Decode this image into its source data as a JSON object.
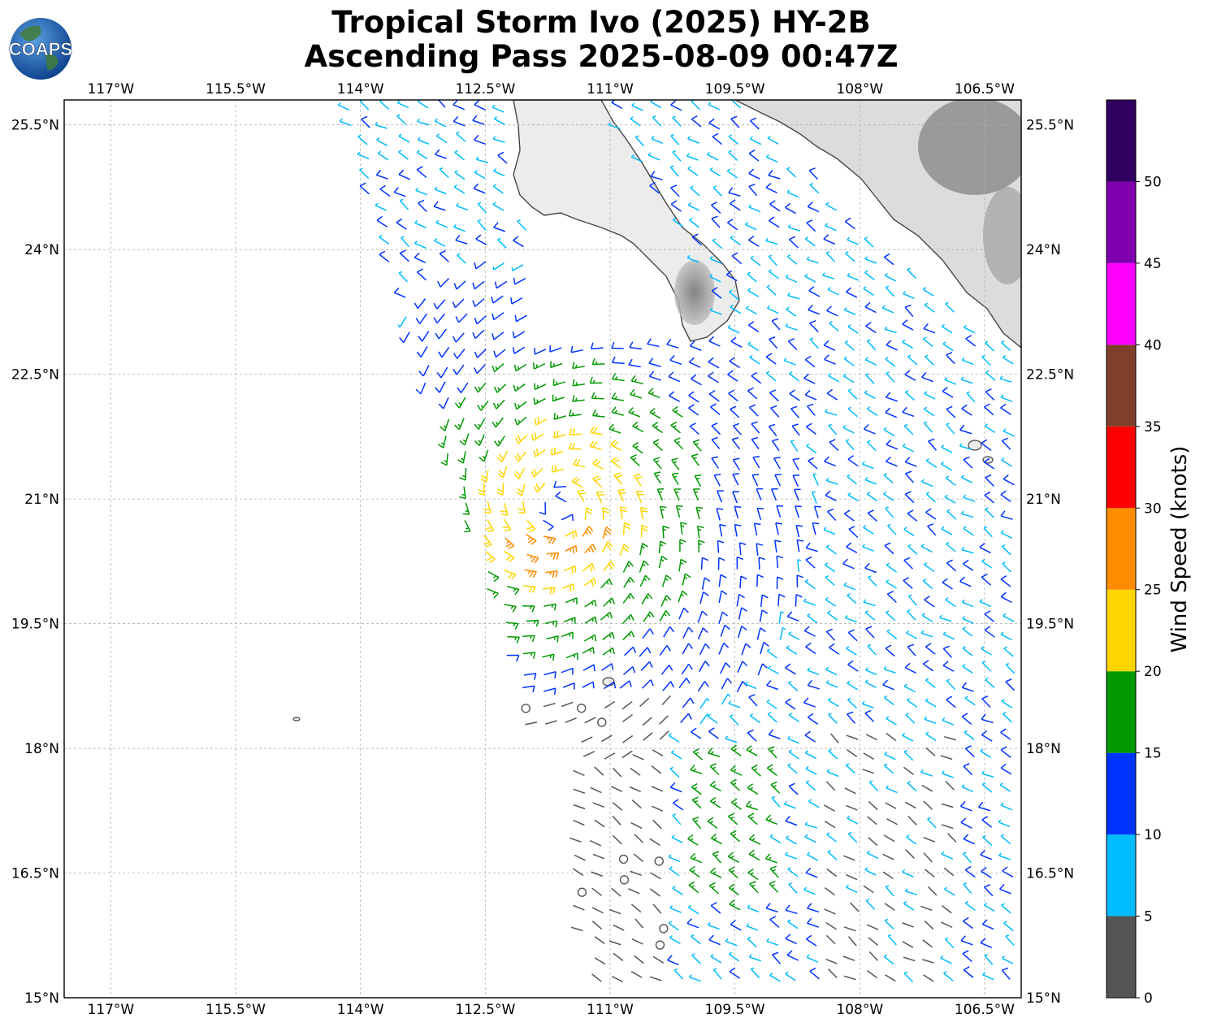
{
  "title": {
    "line1": "Tropical Storm Ivo (2025) HY-2B",
    "line2": "Ascending Pass 2025-08-09 00:47Z"
  },
  "logo": {
    "text": "COAPS",
    "icon": "globe-icon"
  },
  "map": {
    "lon_range": [
      -117.56,
      -106.06
    ],
    "lat_range": [
      15.0,
      25.8
    ],
    "lon_ticks": [
      {
        "value": -117.0,
        "label": "117°W"
      },
      {
        "value": -115.5,
        "label": "115.5°W"
      },
      {
        "value": -114.0,
        "label": "114°W"
      },
      {
        "value": -112.5,
        "label": "112.5°W"
      },
      {
        "value": -111.0,
        "label": "111°W"
      },
      {
        "value": -109.5,
        "label": "109.5°W"
      },
      {
        "value": -108.0,
        "label": "108°W"
      },
      {
        "value": -106.5,
        "label": "106.5°W"
      }
    ],
    "lat_ticks": [
      {
        "value": 25.5,
        "label": "25.5°N"
      },
      {
        "value": 24.0,
        "label": "24°N"
      },
      {
        "value": 22.5,
        "label": "22.5°N"
      },
      {
        "value": 21.0,
        "label": "21°N"
      },
      {
        "value": 19.5,
        "label": "19.5°N"
      },
      {
        "value": 18.0,
        "label": "18°N"
      },
      {
        "value": 16.5,
        "label": "16.5°N"
      },
      {
        "value": 15.0,
        "label": "15°N"
      }
    ],
    "gridlines": true,
    "storm_center": {
      "lon": -111.6,
      "lat": 20.9
    },
    "land_color": "#d8d8d8",
    "coast_color": "#444444"
  },
  "colorbar": {
    "label": "Wind Speed (knots)",
    "bins": [
      {
        "min": 0,
        "max": 5,
        "color": "#555555"
      },
      {
        "min": 5,
        "max": 10,
        "color": "#00bbff"
      },
      {
        "min": 10,
        "max": 15,
        "color": "#0033ff"
      },
      {
        "min": 15,
        "max": 20,
        "color": "#009900"
      },
      {
        "min": 20,
        "max": 25,
        "color": "#ffd500"
      },
      {
        "min": 25,
        "max": 30,
        "color": "#ff8c00"
      },
      {
        "min": 30,
        "max": 35,
        "color": "#ff0000"
      },
      {
        "min": 35,
        "max": 40,
        "color": "#7f3f2a"
      },
      {
        "min": 40,
        "max": 45,
        "color": "#ff00ff"
      },
      {
        "min": 45,
        "max": 50,
        "color": "#8000b0"
      },
      {
        "min": 50,
        "max": 55,
        "color": "#300060"
      }
    ],
    "ticks": [
      {
        "value": 0,
        "label": "0"
      },
      {
        "value": 5,
        "label": "5"
      },
      {
        "value": 10,
        "label": "10"
      },
      {
        "value": 15,
        "label": "15"
      },
      {
        "value": 20,
        "label": "20"
      },
      {
        "value": 25,
        "label": "25"
      },
      {
        "value": 30,
        "label": "30"
      },
      {
        "value": 35,
        "label": "35"
      },
      {
        "value": 40,
        "label": "40"
      },
      {
        "value": 45,
        "label": "45"
      },
      {
        "value": 50,
        "label": "50"
      }
    ]
  }
}
